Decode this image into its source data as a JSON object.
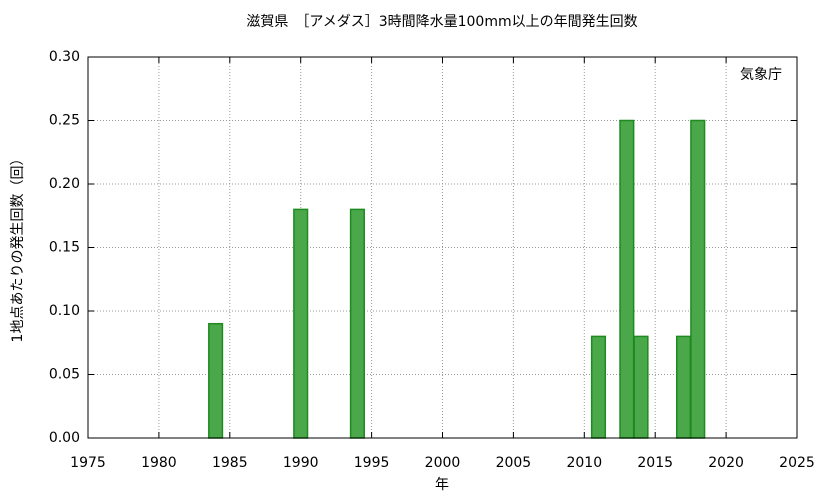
{
  "chart_data": {
    "type": "bar",
    "title": "滋賀県　［アメダス］3時間降水量100mm以上の年間発生回数",
    "annotation": "気象庁",
    "xlabel": "年",
    "ylabel": "1地点あたりの発生回数（回）",
    "x": [
      1984,
      1990,
      1994,
      2011,
      2013,
      2014,
      2017,
      2018
    ],
    "values": [
      0.09,
      0.18,
      0.18,
      0.08,
      0.25,
      0.08,
      0.08,
      0.25
    ],
    "color": "#4aa84a",
    "edgecolor": "#1f8a1f",
    "xlim": [
      1975,
      2025
    ],
    "xticks": [
      1975,
      1980,
      1985,
      1990,
      1995,
      2000,
      2005,
      2010,
      2015,
      2020,
      2025
    ],
    "ylim": [
      0,
      0.3
    ],
    "yticks": [
      {
        "value": 0,
        "label": "0.00"
      },
      0.05,
      {
        "value": 0.1,
        "label": "0.10"
      },
      0.15,
      {
        "value": 0.2,
        "label": "0.20"
      },
      0.25,
      {
        "value": 0.3,
        "label": "0.30"
      }
    ],
    "grid": true
  }
}
